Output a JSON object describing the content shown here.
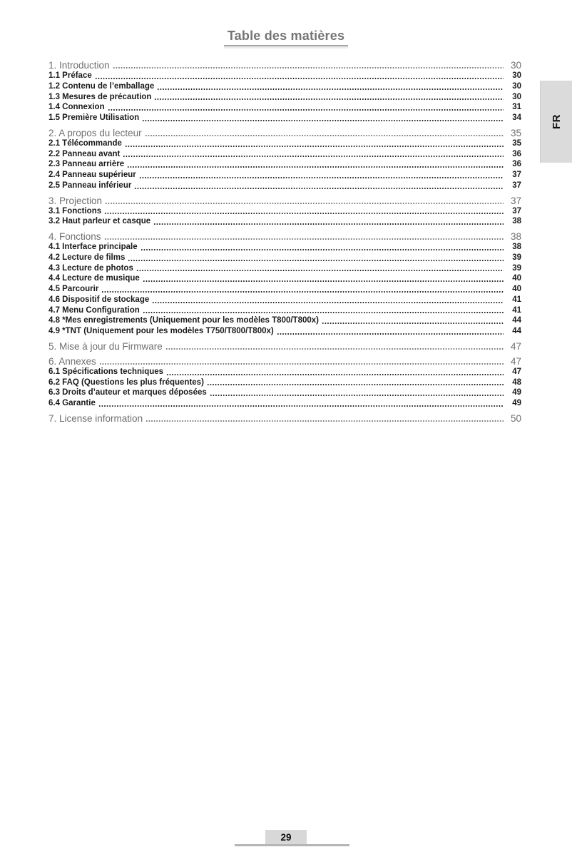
{
  "page": {
    "title": "Table des matières",
    "language_tab": "FR",
    "page_number": "29"
  },
  "toc": {
    "sections": [
      {
        "label": "1. Introduction",
        "page": "30",
        "items": [
          {
            "label": "1.1 Préface",
            "page": "30"
          },
          {
            "label": "1.2 Contenu de l’emballage",
            "page": "30"
          },
          {
            "label": "1.3 Mesures de précaution",
            "page": "30"
          },
          {
            "label": "1.4 Connexion",
            "page": "31"
          },
          {
            "label": "1.5 Première Utilisation",
            "page": "34"
          }
        ]
      },
      {
        "label": "2. A propos du lecteur",
        "page": "35",
        "items": [
          {
            "label": "2.1 Télécommande",
            "page": "35"
          },
          {
            "label": "2.2 Panneau avant",
            "page": "36"
          },
          {
            "label": "2.3 Panneau arrière",
            "page": "36"
          },
          {
            "label": "2.4 Panneau supérieur",
            "page": "37"
          },
          {
            "label": "2.5 Panneau inférieur",
            "page": "37"
          }
        ]
      },
      {
        "label": "3. Projection",
        "page": "37",
        "items": [
          {
            "label": "3.1 Fonctions",
            "page": "37"
          },
          {
            "label": "3.2 Haut parleur et casque",
            "page": "38"
          }
        ]
      },
      {
        "label": "4. Fonctions",
        "page": "38",
        "items": [
          {
            "label": "4.1 Interface principale",
            "page": "38"
          },
          {
            "label": "4.2 Lecture de films",
            "page": "39"
          },
          {
            "label": "4.3 Lecture de photos",
            "page": "39"
          },
          {
            "label": "4.4 Lecture de musique",
            "page": "40"
          },
          {
            "label": "4.5 Parcourir",
            "page": "40"
          },
          {
            "label": "4.6 Dispositif de stockage",
            "page": "41"
          },
          {
            "label": "4.7 Menu Configuration",
            "page": "41"
          },
          {
            "label": "4.8 *Mes enregistrements (Uniquement pour les modèles T800/T800x)",
            "page": "44"
          },
          {
            "label": "4.9 *TNT (Uniquement pour les modèles T750/T800/T800x)",
            "page": "44"
          }
        ]
      },
      {
        "label": "5. Mise à jour du Firmware",
        "page": "47",
        "items": []
      },
      {
        "label": "6. Annexes",
        "page": "47",
        "items": [
          {
            "label": "6.1 Spécifications techniques",
            "page": "47"
          },
          {
            "label": "6.2 FAQ (Questions les plus fréquentes)",
            "page": "48"
          },
          {
            "label": "6.3 Droits d’auteur et marques déposées",
            "page": "49"
          },
          {
            "label": "6.4 Garantie",
            "page": "49"
          }
        ]
      },
      {
        "label": "7. License information",
        "page": "50",
        "items": []
      }
    ]
  }
}
